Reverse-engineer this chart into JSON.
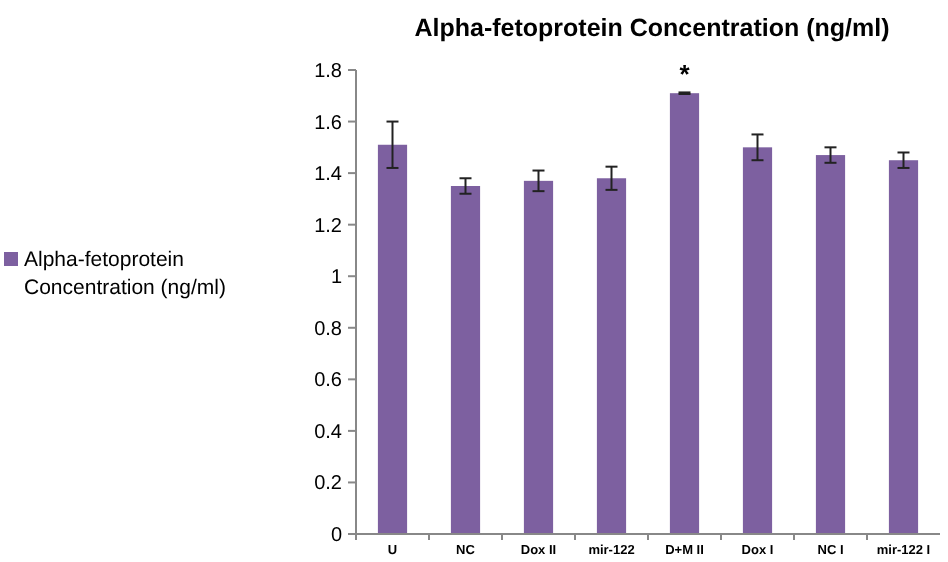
{
  "chart_data": {
    "type": "bar",
    "title": "Alpha-fetoprotein Concentration (ng/ml)",
    "categories": [
      "U",
      "NC",
      "Dox II",
      "mir-122",
      "D+M II",
      "Dox I",
      "NC I",
      "mir-122 I"
    ],
    "series": [
      {
        "name": "Alpha-fetoprotein Concentration (ng/ml)",
        "color": "#7d60a0",
        "values": [
          1.51,
          1.35,
          1.37,
          1.38,
          1.71,
          1.5,
          1.47,
          1.45
        ],
        "errors": [
          0.09,
          0.03,
          0.04,
          0.045,
          0.003,
          0.05,
          0.03,
          0.03
        ]
      }
    ],
    "ylim": [
      0,
      1.8
    ],
    "yticks": [
      0,
      0.2,
      0.4,
      0.6,
      0.8,
      1,
      1.2,
      1.4,
      1.6,
      1.8
    ],
    "legend": "left",
    "annotations": [
      {
        "text": "*",
        "x": "D+M II",
        "y": 1.71
      }
    ]
  }
}
